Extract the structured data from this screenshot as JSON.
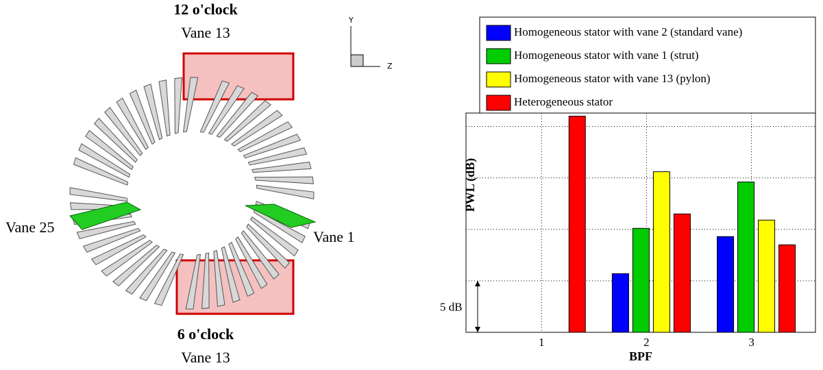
{
  "diagram": {
    "top_label": "12 o'clock",
    "top_vane": "Vane 13",
    "bottom_label": "6 o'clock",
    "bottom_vane": "Vane 13",
    "left_vane": "Vane 25",
    "right_vane": "Vane 1",
    "axis_y": "Y",
    "axis_z": "Z"
  },
  "chart_data": {
    "type": "bar",
    "x_label": "BPF",
    "y_label": "PWL (dB)",
    "scale_annotation": "5 dB",
    "x": [
      1,
      2,
      3
    ],
    "xlim": [
      0.28,
      3.61
    ],
    "xticks": [
      1,
      2,
      3
    ],
    "ylim": [
      0,
      21.3
    ],
    "yticks": [
      0,
      5,
      10,
      15,
      20
    ],
    "grid": true,
    "legend": "top",
    "series": [
      {
        "name": "Homogeneous stator with vane 2 (standard vane)",
        "color": "#0000ff",
        "values": [
          null,
          5.7,
          9.3
        ]
      },
      {
        "name": "Homogeneous stator with vane 1 (strut)",
        "color": "#00cc00",
        "values": [
          null,
          10.1,
          14.6
        ]
      },
      {
        "name": "Homogeneous stator with vane 13 (pylon)",
        "color": "#ffff00",
        "values": [
          null,
          15.6,
          10.9
        ]
      },
      {
        "name": "Heterogeneous stator",
        "color": "#ff0000",
        "values": [
          21,
          11.5,
          8.5
        ]
      }
    ]
  }
}
